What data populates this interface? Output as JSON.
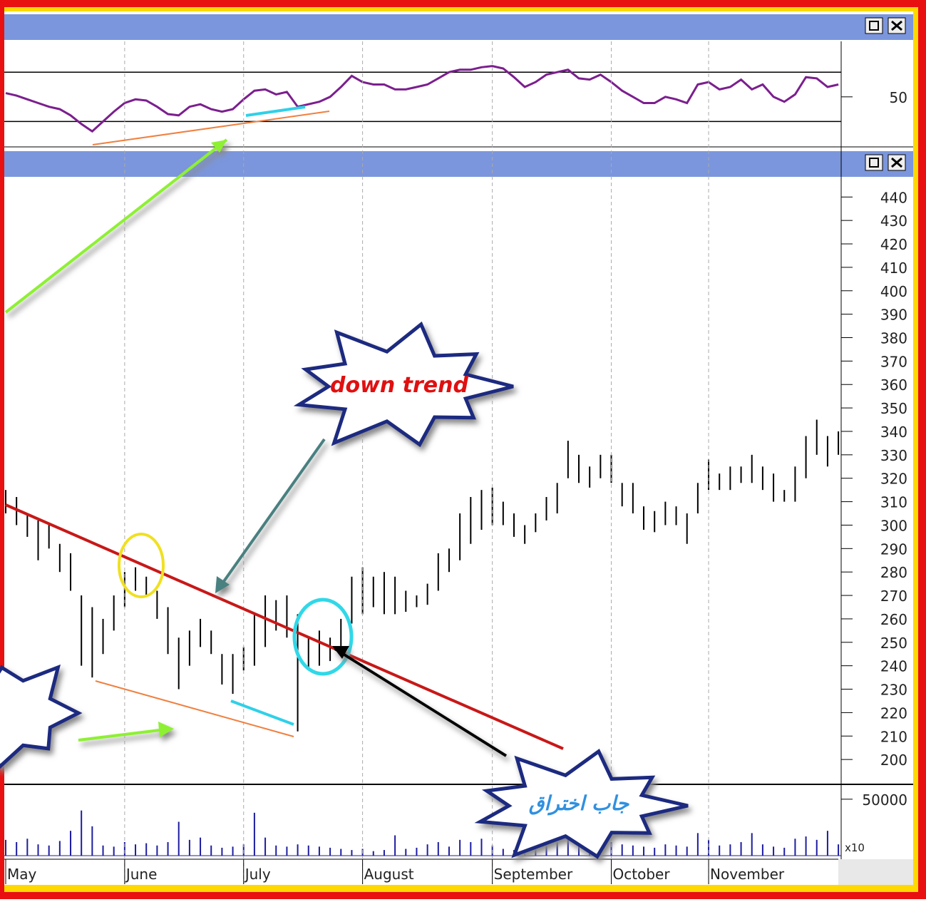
{
  "chart_data": [
    {
      "type": "line",
      "pane": "indicator",
      "series": [
        {
          "name": null,
          "color": "#7b1f8e",
          "values": [
            53,
            51,
            48,
            45,
            42,
            40,
            35,
            28,
            22,
            30,
            38,
            45,
            48,
            47,
            42,
            36,
            35,
            42,
            44,
            40,
            38,
            40,
            48,
            55,
            56,
            52,
            54,
            42,
            44,
            46,
            50,
            58,
            67,
            62,
            60,
            60,
            56,
            56,
            58,
            60,
            65,
            70,
            72,
            72,
            74,
            75,
            73,
            66,
            58,
            62,
            68,
            70,
            72,
            65,
            64,
            68,
            62,
            55,
            50,
            45,
            45,
            50,
            48,
            45,
            60,
            62,
            56,
            58,
            64,
            56,
            60,
            50,
            46,
            52,
            66,
            65,
            58,
            60
          ]
        }
      ],
      "ylim": [
        10,
        95
      ],
      "yticks": [
        50
      ],
      "ref_lines": [
        70,
        30
      ]
    },
    {
      "type": "ohlc",
      "pane": "price",
      "high": [
        315,
        312,
        305,
        302,
        300,
        292,
        288,
        270,
        265,
        260,
        270,
        280,
        282,
        278,
        272,
        265,
        252,
        255,
        260,
        255,
        245,
        245,
        248,
        262,
        270,
        268,
        270,
        262,
        252,
        255,
        252,
        260,
        278,
        282,
        278,
        280,
        278,
        272,
        270,
        275,
        288,
        290,
        305,
        312,
        315,
        316,
        310,
        305,
        300,
        305,
        312,
        318,
        336,
        330,
        325,
        330,
        330,
        318,
        318,
        308,
        306,
        310,
        308,
        305,
        318,
        328,
        322,
        325,
        325,
        330,
        325,
        322,
        315,
        325,
        338,
        345,
        338,
        340
      ],
      "low": [
        305,
        300,
        295,
        285,
        290,
        280,
        272,
        240,
        235,
        245,
        255,
        265,
        272,
        270,
        260,
        245,
        230,
        240,
        248,
        245,
        232,
        228,
        238,
        240,
        248,
        255,
        252,
        212,
        238,
        240,
        242,
        248,
        258,
        262,
        265,
        262,
        262,
        263,
        265,
        266,
        272,
        280,
        285,
        292,
        298,
        300,
        300,
        295,
        292,
        297,
        302,
        305,
        320,
        318,
        316,
        320,
        318,
        308,
        305,
        298,
        297,
        300,
        300,
        292,
        305,
        315,
        315,
        315,
        318,
        318,
        315,
        310,
        310,
        310,
        320,
        330,
        325,
        330
      ],
      "color": "#000000",
      "ylim": [
        190,
        448
      ],
      "yticks": [
        200,
        210,
        220,
        230,
        240,
        250,
        260,
        270,
        280,
        290,
        300,
        310,
        320,
        330,
        340,
        350,
        360,
        370,
        380,
        390,
        400,
        410,
        420,
        430,
        440
      ],
      "annotations": [
        "down trend",
        "جاب اختراق"
      ]
    },
    {
      "type": "bar",
      "pane": "volume",
      "color": "#1c1ca0",
      "values": [
        14000,
        12000,
        15000,
        10000,
        9000,
        13000,
        22000,
        40000,
        26000,
        9000,
        8000,
        12000,
        10000,
        11000,
        9000,
        12000,
        30000,
        14000,
        16000,
        9000,
        7000,
        8000,
        10000,
        38000,
        16000,
        9000,
        8000,
        10000,
        9000,
        8000,
        7000,
        6000,
        5000,
        6000,
        4000,
        5000,
        18000,
        6000,
        7000,
        10000,
        12000,
        8000,
        14000,
        12000,
        15000,
        9000,
        6000,
        5000,
        6000,
        8000,
        10000,
        12000,
        20000,
        16000,
        10000,
        9000,
        12000,
        10000,
        9000,
        8000,
        7000,
        10000,
        9000,
        8000,
        20000,
        14000,
        9000,
        10000,
        12000,
        20000,
        10000,
        8000,
        7000,
        15000,
        17000,
        14000,
        22000,
        10000
      ],
      "ylim": [
        0,
        60000
      ],
      "yticks": [
        50000
      ],
      "scale_label": "x10"
    },
    {
      "type": "axis",
      "categories": [
        "May",
        "June",
        "July",
        "August",
        "September",
        "October",
        "November"
      ],
      "x": [
        0,
        11,
        22,
        33,
        45,
        56,
        65
      ]
    }
  ]
}
